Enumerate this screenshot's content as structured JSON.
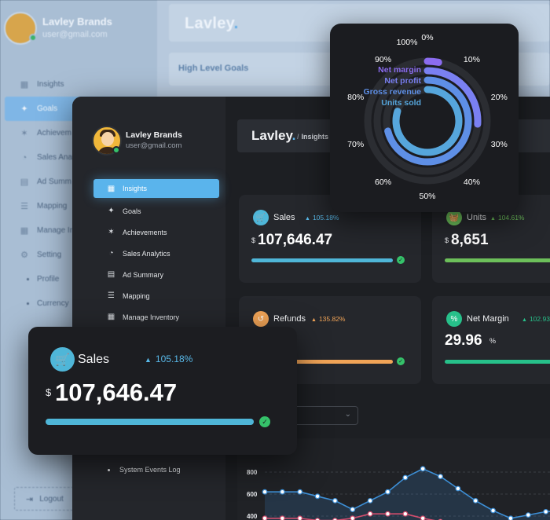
{
  "background": {
    "user": {
      "name": "Lavley Brands",
      "email": "user@gmail.com"
    },
    "logo": "Lavley",
    "section_title": "High Level Goals",
    "nav": [
      {
        "label": "Insights",
        "icon": "grid-icon"
      },
      {
        "label": "Goals",
        "icon": "pin-icon",
        "active": true
      },
      {
        "label": "Achievem",
        "icon": "star-icon"
      },
      {
        "label": "Sales Ana",
        "icon": "pie-icon"
      },
      {
        "label": "Ad Summ",
        "icon": "document-icon"
      },
      {
        "label": "Mapping",
        "icon": "bars-icon"
      },
      {
        "label": "Manage In",
        "icon": "grid-icon"
      },
      {
        "label": "Setting",
        "icon": "gear-icon"
      }
    ],
    "sub_nav": [
      "Profile",
      "Currency"
    ],
    "logout": "Logout"
  },
  "dashboard": {
    "user": {
      "name": "Lavley Brands",
      "email": "user@gmail.com"
    },
    "logo": "Lavley",
    "breadcrumb": "Insights",
    "nav": [
      {
        "label": "Insights",
        "icon": "grid-icon",
        "active": true
      },
      {
        "label": "Goals",
        "icon": "pin-icon"
      },
      {
        "label": "Achievements",
        "icon": "star-icon"
      },
      {
        "label": "Sales Analytics",
        "icon": "pie-icon"
      },
      {
        "label": "Ad Summary",
        "icon": "document-icon"
      },
      {
        "label": "Mapping",
        "icon": "bars-icon"
      },
      {
        "label": "Manage Inventory",
        "icon": "grid-icon"
      }
    ],
    "events_log": "System Events Log",
    "cards": {
      "sales": {
        "label": "Sales",
        "trend": "105.18%",
        "currency": "$",
        "value": "107,646.47",
        "color": "#4fb6d8"
      },
      "units": {
        "label": "Units",
        "trend": "104.61%",
        "currency": "$",
        "value": "8,651",
        "color": "#6cbf5a"
      },
      "refunds": {
        "label": "Refunds",
        "trend": "135.82%",
        "color": "#f1a457"
      },
      "net_margin": {
        "label": "Net Margin",
        "trend": "102.93%",
        "value": "29.96",
        "unit": "%",
        "color": "#27c08a"
      }
    },
    "chart_data": {
      "type": "line",
      "y_ticks": [
        "800",
        "600",
        "400"
      ],
      "ylim": [
        400,
        850
      ],
      "series": [
        {
          "color": "#3d8fd6",
          "values": [
            620,
            620,
            620,
            580,
            540,
            460,
            540,
            620,
            750,
            830,
            760,
            650,
            540,
            450,
            380,
            410,
            440,
            450
          ]
        },
        {
          "color": "#d24d6d",
          "values": [
            380,
            380,
            380,
            360,
            360,
            380,
            420,
            420,
            420,
            380,
            350,
            340,
            330,
            320,
            330,
            340,
            340,
            350
          ]
        }
      ]
    }
  },
  "radial_chart": {
    "ticks": [
      "0%",
      "10%",
      "20%",
      "30%",
      "40%",
      "50%",
      "60%",
      "70%",
      "80%",
      "90%",
      "100%"
    ],
    "rings": [
      {
        "name": "Net margin",
        "value": 0.03,
        "color": "#8b6cf0"
      },
      {
        "name": "Net profit",
        "value": 0.26,
        "color": "#7a80f2"
      },
      {
        "name": "Gross revenue",
        "value": 0.71,
        "color": "#5e8fe6"
      },
      {
        "name": "Units sold",
        "value": 0.8,
        "color": "#56a6dc"
      }
    ]
  },
  "sales_popup": {
    "label": "Sales",
    "trend": "105.18%",
    "currency": "$",
    "value": "107,646.47",
    "color": "#4fb6d8",
    "progress": 0.97
  }
}
